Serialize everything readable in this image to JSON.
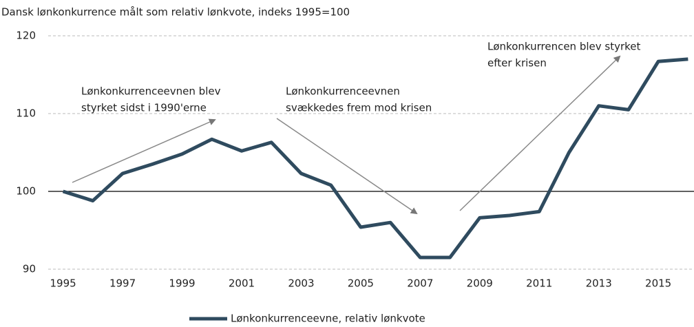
{
  "chart_data": {
    "type": "line",
    "title": "Dansk lønkonkurrence målt som relativ lønkvote, indeks 1995=100",
    "x": [
      1995,
      1996,
      1997,
      1998,
      1999,
      2000,
      2001,
      2002,
      2003,
      2004,
      2005,
      2006,
      2007,
      2008,
      2009,
      2010,
      2011,
      2012,
      2013,
      2014,
      2015,
      2016
    ],
    "series": [
      {
        "name": "Lønkonkurrenceevne, relativ lønkvote",
        "color": "#2f4b5f",
        "values": [
          100,
          98.8,
          102.3,
          103.5,
          104.8,
          106.7,
          105.2,
          106.3,
          102.3,
          100.8,
          95.4,
          96.0,
          91.5,
          91.5,
          96.6,
          96.9,
          97.4,
          105,
          111,
          110.5,
          116.7,
          117
        ]
      }
    ],
    "xlim": [
      1994.5,
      2016.2
    ],
    "xticks": [
      1995,
      1997,
      1999,
      2001,
      2003,
      2005,
      2007,
      2009,
      2011,
      2013,
      2015
    ],
    "ylim": [
      90,
      120
    ],
    "yticks": [
      90,
      100,
      110,
      120
    ],
    "grid": true,
    "reference_line": 100,
    "annotations": [
      {
        "lines": [
          "Lønkonkurrenceevnen blev",
          "styrket sidst i 1990'erne"
        ]
      },
      {
        "lines": [
          "Lønkonkurrenceevnen",
          "svækkedes frem mod krisen"
        ]
      },
      {
        "lines": [
          "Lønkonkurrencen blev styrket",
          "efter krisen"
        ]
      }
    ]
  }
}
